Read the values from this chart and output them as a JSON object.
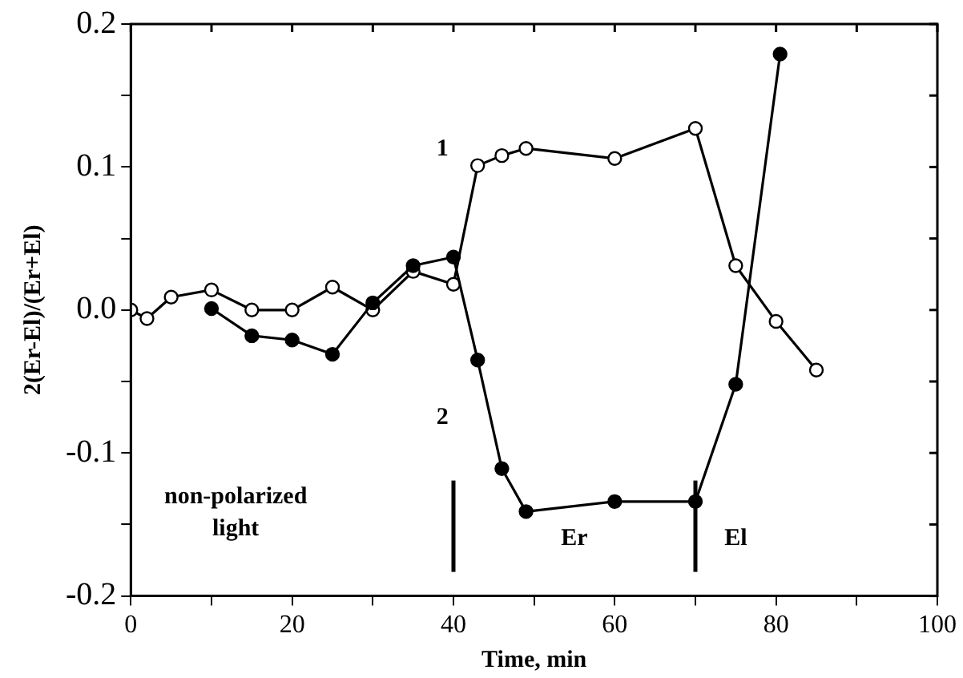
{
  "chart_data": {
    "type": "line",
    "xlabel": "Time, min",
    "ylabel": "2(Er-El)/(Er+El)",
    "xlim": [
      0,
      100
    ],
    "ylim": [
      -0.2,
      0.2
    ],
    "xticks": [
      0,
      {
        "value": 10,
        "label": null
      },
      20,
      {
        "value": 30,
        "label": null
      },
      40,
      {
        "value": 50,
        "label": null
      },
      60,
      {
        "value": 70,
        "label": null
      },
      80,
      {
        "value": 90,
        "label": null
      },
      100
    ],
    "yticks": [
      -0.2,
      {
        "value": -0.15,
        "label": null
      },
      -0.1,
      {
        "value": -0.05,
        "label": null
      },
      {
        "value": 0,
        "label": "0.0"
      },
      {
        "value": 0.05,
        "label": null
      },
      0.1,
      {
        "value": 0.15,
        "label": null
      },
      0.2
    ],
    "grid": false,
    "legend": false,
    "marker": "circle",
    "line_style": "solid",
    "series": [
      {
        "name": "1",
        "color": "#000000",
        "x": [
          0,
          2,
          5,
          10,
          15,
          20,
          25,
          30,
          35,
          40,
          43,
          46,
          49,
          60,
          70,
          75,
          80,
          85
        ],
        "values": [
          0,
          -0.006,
          0.009,
          0.014,
          0,
          0,
          0.016,
          0,
          0.027,
          0.018,
          0.101,
          0.108,
          0.113,
          0.106,
          0.127,
          0.031,
          -0.008,
          -0.042
        ]
      },
      {
        "name": "2",
        "color": "#000000",
        "x": [
          10,
          15,
          20,
          25,
          30,
          35,
          40,
          43,
          46,
          49,
          60,
          70,
          75,
          80.5
        ],
        "values": [
          0.001,
          -0.018,
          -0.021,
          -0.031,
          0.005,
          0.031,
          0.037,
          -0.035,
          -0.111,
          -0.141,
          -0.134,
          -0.134,
          -0.052,
          0.179
        ]
      }
    ],
    "ref_lines": [
      {
        "axis": "x",
        "value": 40
      },
      {
        "axis": "x",
        "value": 70
      }
    ],
    "annotations": [
      "non-polarized light",
      "Er",
      "El"
    ]
  }
}
